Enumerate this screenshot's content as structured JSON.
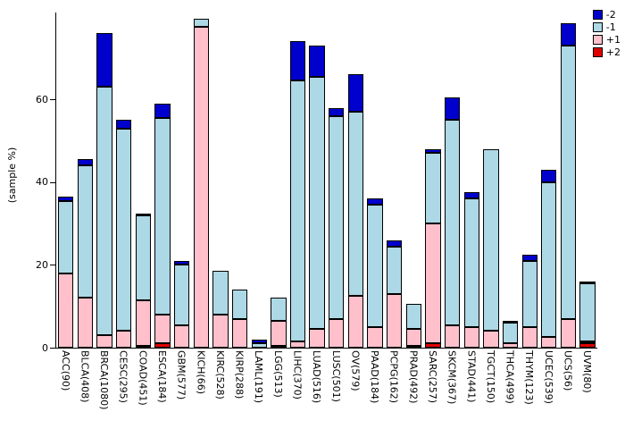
{
  "y_axis": {
    "label": "(sample %)",
    "ticks": [
      0,
      20,
      40,
      60
    ]
  },
  "legend": [
    {
      "label": "-2",
      "color": "#0000CC"
    },
    {
      "label": "-1",
      "color": "#ADD8E6"
    },
    {
      "label": "+1",
      "color": "#FFC0CB"
    },
    {
      "label": "+2",
      "color": "#E00000"
    }
  ],
  "chart_data": {
    "type": "bar",
    "stacked": true,
    "title": "",
    "xlabel": "",
    "ylabel": "(sample %)",
    "ylim": [
      0,
      81
    ],
    "yticks": [
      0,
      20,
      40,
      60
    ],
    "grid": false,
    "legend_position": "top-right",
    "legend_order": [
      "-2",
      "-1",
      "+1",
      "+2"
    ],
    "categories": [
      "ACC(90)",
      "BLCA(408)",
      "BRCA(1080)",
      "CESC(295)",
      "COAD(451)",
      "ESCA(184)",
      "GBM(577)",
      "KICH(66)",
      "KIRC(528)",
      "KIRP(288)",
      "LAML(191)",
      "LGG(513)",
      "LIHC(370)",
      "LUAD(516)",
      "LUSC(501)",
      "OV(579)",
      "PAAD(184)",
      "PCPG(162)",
      "PRAD(492)",
      "SARC(257)",
      "SKCM(367)",
      "STAD(441)",
      "TGCT(150)",
      "THCA(499)",
      "THYM(123)",
      "UCEC(539)",
      "UCS(56)",
      "UVM(80)"
    ],
    "series": [
      {
        "name": "+2",
        "color": "#E00000",
        "values": [
          0,
          0,
          0,
          0,
          0.5,
          1,
          0,
          0,
          0,
          0,
          0,
          0.5,
          0,
          0,
          0,
          0,
          0,
          0,
          0.5,
          1,
          0,
          0,
          0,
          0,
          0,
          0,
          0,
          1
        ]
      },
      {
        "name": "+1",
        "color": "#FFC0CB",
        "values": [
          18,
          12,
          3,
          4,
          11,
          7,
          5.5,
          77.5,
          8,
          7,
          0,
          6,
          1.5,
          4.5,
          7,
          12.5,
          5,
          13,
          4,
          29,
          5.5,
          5,
          4,
          1,
          5,
          2.5,
          7,
          0.5
        ]
      },
      {
        "name": "-1",
        "color": "#ADD8E6",
        "values": [
          17.5,
          32,
          60,
          49,
          20.5,
          47.5,
          14.5,
          2,
          10.5,
          7,
          1,
          5.5,
          63,
          61,
          49,
          44.5,
          29.5,
          11.5,
          6,
          17,
          49.5,
          31,
          44,
          5,
          16,
          37.5,
          66,
          14
        ]
      },
      {
        "name": "-2",
        "color": "#0000CC",
        "values": [
          1,
          1.5,
          13,
          2,
          0.5,
          3.5,
          1,
          0,
          0,
          0,
          1,
          0,
          9.5,
          7.5,
          2,
          9,
          1.5,
          1.5,
          0,
          1,
          5.5,
          1.5,
          0,
          0.5,
          1.5,
          3,
          5.5,
          0.5
        ]
      }
    ]
  }
}
